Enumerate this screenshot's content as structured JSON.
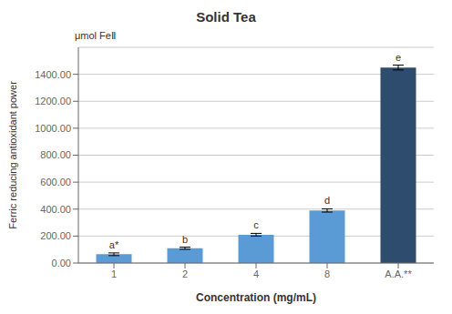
{
  "chart_data": {
    "type": "bar",
    "title": "Solid Tea",
    "categories": [
      "1",
      "2",
      "4",
      "8",
      "A.A.**"
    ],
    "values": [
      65,
      110,
      210,
      390,
      1450
    ],
    "errors": [
      10,
      8,
      10,
      12,
      18
    ],
    "colors": [
      "#5b9bd5",
      "#5b9bd5",
      "#5b9bd5",
      "#5b9bd5",
      "#2e4d6e"
    ],
    "xlabel": "Concentration (mg/mL)",
    "ylabel": "Ferric reducing antioxidant power",
    "ylim": [
      0,
      1600
    ],
    "yticks": [
      {
        "value": 0,
        "label": "0.00"
      },
      {
        "value": 200,
        "label": "200.00"
      },
      {
        "value": 400,
        "label": "400.00"
      },
      {
        "value": 600,
        "label": "600.00"
      },
      {
        "value": 800,
        "label": "800.00"
      },
      {
        "value": 1000,
        "label": "1000.00"
      },
      {
        "value": 1200,
        "label": "1200.00"
      },
      {
        "value": 1400,
        "label": "1400.00"
      }
    ],
    "grid": true,
    "annotations": [
      {
        "text": "a*",
        "category": "1"
      },
      {
        "text": "b",
        "category": "2"
      },
      {
        "text": "c",
        "category": "4"
      },
      {
        "text": "d",
        "category": "8"
      },
      {
        "text": "e",
        "category": "A.A.**"
      },
      {
        "text": "μmol FeⅡ"
      }
    ]
  }
}
